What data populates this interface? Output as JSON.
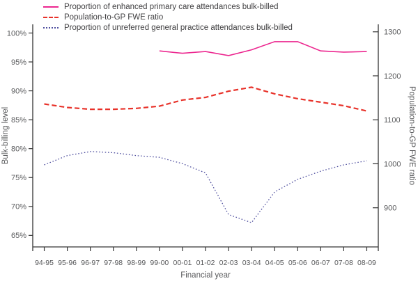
{
  "chart_data": {
    "type": "line",
    "title": "",
    "xlabel": "Financial year",
    "ylabel_left": "Bulk-billing level",
    "ylabel_right": "Population-to-GP FWE ratio",
    "grid": false,
    "legend_position": "top-left",
    "categories": [
      "94-95",
      "95-96",
      "96-97",
      "97-98",
      "98-99",
      "99-00",
      "00-01",
      "01-02",
      "02-03",
      "03-04",
      "04-05",
      "05-06",
      "06-07",
      "07-08",
      "08-09"
    ],
    "left_axis": {
      "min": 63,
      "max": 101.5,
      "ticks": [
        100,
        95,
        90,
        85,
        80,
        75,
        70,
        65
      ],
      "tick_labels": [
        "100%",
        "95%",
        "90%",
        "85%",
        "80%",
        "75%",
        "70%",
        "65%"
      ]
    },
    "right_axis": {
      "min": 811,
      "max": 1317,
      "ticks": [
        1300,
        1200,
        1100,
        1000,
        900
      ],
      "tick_labels": [
        "1300",
        "1200",
        "1100",
        "1000",
        "900"
      ]
    },
    "series": [
      {
        "name": "Proportion of enhanced primary care attendances bulk-billed",
        "axis": "left",
        "color": "#ec268f",
        "dash": "solid",
        "values": [
          null,
          null,
          null,
          null,
          null,
          96.9,
          96.5,
          96.8,
          96.1,
          97.1,
          98.5,
          98.5,
          96.9,
          96.7,
          96.8
        ]
      },
      {
        "name": "Population-to-GP FWE ratio",
        "axis": "right",
        "color": "#e8322a",
        "dash": "dashed",
        "values": [
          1136,
          1128,
          1124,
          1124,
          1126,
          1131,
          1145,
          1151,
          1165,
          1174,
          1159,
          1148,
          1140,
          1132,
          1120
        ]
      },
      {
        "name": "Proportion of unreferred general practice attendances bulk-billed",
        "axis": "left",
        "color": "#4f4f9f",
        "dash": "dotted",
        "values": [
          77.2,
          78.8,
          79.5,
          79.3,
          78.8,
          78.5,
          77.4,
          75.8,
          68.6,
          67.2,
          72.5,
          74.7,
          76.1,
          77.2,
          77.9
        ]
      }
    ],
    "axis_color": "#343434",
    "text_color": "#58595b"
  }
}
